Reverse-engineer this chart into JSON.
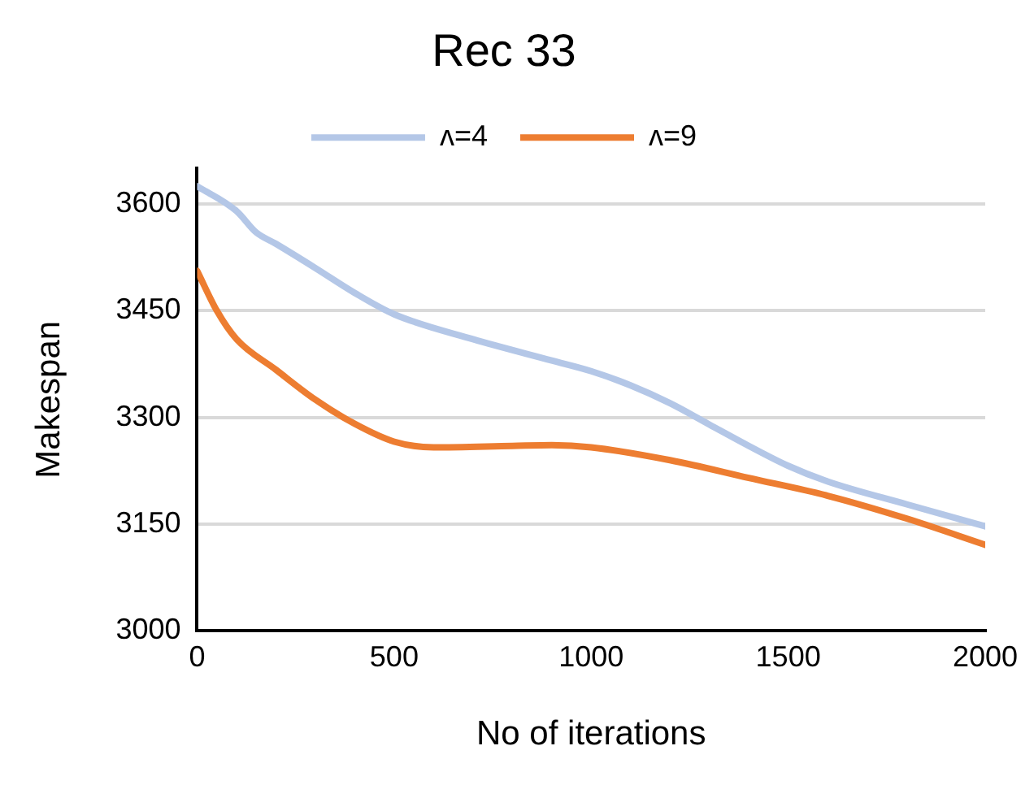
{
  "chart_data": {
    "type": "line",
    "title": "Rec 33",
    "xlabel": "No of iterations",
    "ylabel": "Makespan",
    "xlim": [
      0,
      2000
    ],
    "xticks": [
      0,
      500,
      1000,
      1500,
      2000
    ],
    "ylim": [
      3000,
      3650
    ],
    "yticks": [
      3000,
      3150,
      3300,
      3450,
      3600
    ],
    "grid": "y",
    "legend": "top",
    "marker": "none",
    "line_style": "solid",
    "series": [
      {
        "name": "ʌ=4",
        "color": "#b4c7e7",
        "x": [
          0,
          100,
          150,
          200,
          300,
          400,
          500,
          700,
          900,
          1000,
          1100,
          1200,
          1300,
          1400,
          1500,
          1600,
          1800,
          2000
        ],
        "values": [
          3625,
          3590,
          3560,
          3544,
          3510,
          3475,
          3445,
          3410,
          3380,
          3365,
          3345,
          3320,
          3290,
          3260,
          3232,
          3210,
          3178,
          3147
        ]
      },
      {
        "name": "ʌ=9",
        "color": "#ed7d31",
        "x": [
          0,
          50,
          100,
          200,
          300,
          400,
          500,
          600,
          800,
          900,
          1000,
          1200,
          1400,
          1600,
          1800,
          2000
        ],
        "values": [
          3506,
          3450,
          3410,
          3367,
          3325,
          3291,
          3266,
          3258,
          3260,
          3261,
          3258,
          3240,
          3215,
          3190,
          3158,
          3121
        ]
      }
    ]
  }
}
